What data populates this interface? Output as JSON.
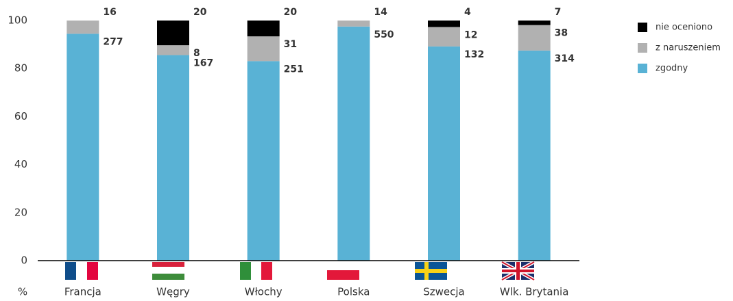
{
  "chart_data": {
    "type": "bar",
    "stacked": true,
    "y_label": "%",
    "categories": [
      "Francja",
      "Węgry",
      "Włochy",
      "Polska",
      "Szwecja",
      "Wlk. Brytania"
    ],
    "series": [
      {
        "name": "zgodny",
        "color": "#59b2d5",
        "values": [
          94.5,
          85.6,
          83.1,
          97.5,
          89.2,
          87.5
        ],
        "counts": [
          277,
          167,
          251,
          550,
          132,
          314
        ],
        "label_color": "#4aaed4"
      },
      {
        "name": "z naruszeniem",
        "color": "#b1b1b1",
        "values": [
          5.5,
          4.1,
          10.3,
          2.5,
          8.1,
          10.6
        ],
        "counts": [
          16,
          8,
          31,
          14,
          12,
          38
        ],
        "label_color": "#aaaaaa"
      },
      {
        "name": "nie oceniono",
        "color": "#000000",
        "values": [
          null,
          10.3,
          6.6,
          null,
          2.7,
          1.9
        ],
        "counts": [
          null,
          20,
          20,
          null,
          4,
          7
        ],
        "label_color": "#000000"
      }
    ],
    "ylim": [
      0,
      100
    ],
    "yticks": [
      0,
      20,
      40,
      60,
      80,
      100
    ],
    "grid": false
  }
}
